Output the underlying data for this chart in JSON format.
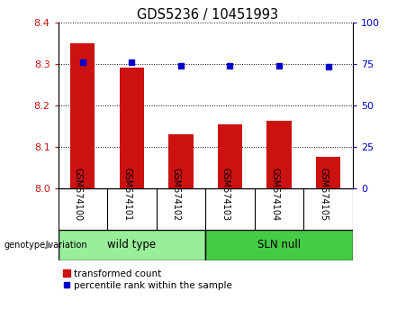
{
  "title": "GDS5236 / 10451993",
  "samples": [
    "GSM574100",
    "GSM574101",
    "GSM574102",
    "GSM574103",
    "GSM574104",
    "GSM574105"
  ],
  "transformed_counts": [
    8.35,
    8.29,
    8.13,
    8.155,
    8.163,
    8.075
  ],
  "percentile_ranks": [
    76,
    76,
    74,
    74,
    74,
    73
  ],
  "ylim_left": [
    8.0,
    8.4
  ],
  "ylim_right": [
    0,
    100
  ],
  "yticks_left": [
    8.0,
    8.1,
    8.2,
    8.3,
    8.4
  ],
  "yticks_right": [
    0,
    25,
    50,
    75,
    100
  ],
  "bar_color": "#cc1111",
  "dot_color": "#0000cc",
  "grid_color": "#000000",
  "groups": [
    {
      "label": "wild type",
      "indices": [
        0,
        1,
        2
      ],
      "color": "#99ee99"
    },
    {
      "label": "SLN null",
      "indices": [
        3,
        4,
        5
      ],
      "color": "#44cc44"
    }
  ],
  "legend_bar_label": "transformed count",
  "legend_dot_label": "percentile rank within the sample",
  "genotype_label": "genotype/variation",
  "tick_label_color_left": "#cc1111",
  "tick_label_color_right": "#0000cc",
  "background_plot": "#ffffff",
  "background_label": "#cccccc",
  "bar_width": 0.5
}
